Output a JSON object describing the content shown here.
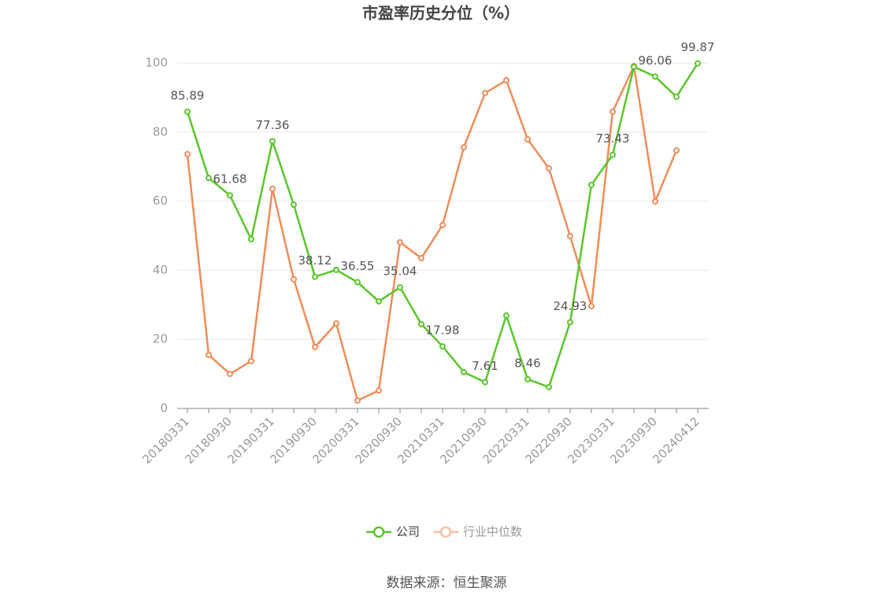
{
  "chart_data": {
    "type": "line",
    "title": "市盈率历史分位（%）",
    "categories": [
      "20180331",
      null,
      "20180930",
      null,
      "20190331",
      null,
      "20190930",
      null,
      "20200331",
      null,
      "20200930",
      null,
      "20210331",
      null,
      "20210930",
      null,
      "20220331",
      null,
      "20220930",
      null,
      "20230331",
      null,
      "20230930",
      null,
      "20240412"
    ],
    "series": [
      {
        "name": "公司",
        "color": "#5ac52b",
        "values": [
          85.89,
          66.7,
          61.68,
          49.0,
          77.36,
          59.0,
          38.12,
          40.1,
          36.55,
          31.0,
          35.04,
          24.4,
          17.98,
          10.5,
          7.61,
          26.9,
          8.46,
          6.2,
          24.93,
          64.7,
          73.43,
          98.9,
          96.06,
          90.2,
          99.87
        ]
      },
      {
        "name": "行业中位数",
        "color": "#f08c5a",
        "values": [
          73.6,
          15.5,
          10.0,
          13.7,
          63.6,
          37.4,
          17.8,
          24.6,
          2.3,
          5.2,
          48.1,
          43.5,
          53.1,
          75.6,
          91.3,
          95.0,
          77.9,
          69.5,
          49.9,
          29.6,
          85.9,
          99.1,
          59.9,
          74.7,
          null
        ]
      }
    ],
    "ylim": [
      0,
      100
    ],
    "yticks": [
      0,
      20,
      40,
      60,
      80,
      100
    ],
    "grid": true,
    "source": "数据来源：恒生聚源"
  }
}
